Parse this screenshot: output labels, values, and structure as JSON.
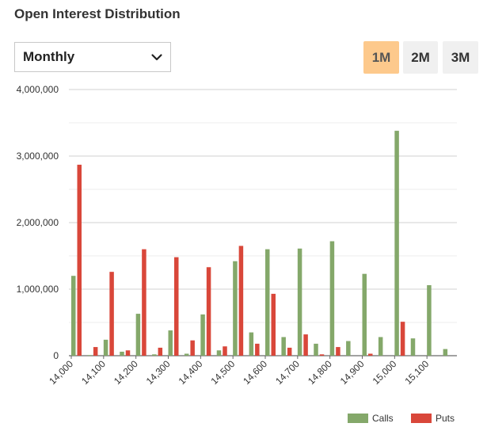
{
  "title": "Open Interest Distribution",
  "period_select": {
    "value": "Monthly",
    "icon": "chevron-down-icon"
  },
  "range_buttons": [
    {
      "label": "1M",
      "active": true
    },
    {
      "label": "2M",
      "active": false
    },
    {
      "label": "3M",
      "active": false
    }
  ],
  "colors": {
    "calls": "#84a86a",
    "puts": "#d9473a",
    "active_button": "#fdc98c",
    "button": "#f0f0f0"
  },
  "chart_data": {
    "type": "bar",
    "title": "",
    "xlabel": "",
    "ylabel": "",
    "ylim": [
      0,
      4000000
    ],
    "yticks": [
      0,
      1000000,
      2000000,
      3000000,
      4000000
    ],
    "ytick_labels": [
      "0",
      "1,000,000",
      "2,000,000",
      "3,000,000",
      "4,000,000"
    ],
    "grid": true,
    "legend_position": "bottom-right",
    "categories": [
      14000,
      14050,
      14100,
      14150,
      14200,
      14250,
      14300,
      14350,
      14400,
      14450,
      14500,
      14550,
      14600,
      14650,
      14700,
      14750,
      14800,
      14850,
      14900,
      14950,
      15000,
      15050,
      15100,
      15150
    ],
    "xtick_labels": [
      "14,000",
      "14,100",
      "14,200",
      "14,300",
      "14,400",
      "14,500",
      "14,600",
      "14,700",
      "14,800",
      "14,900",
      "15,000",
      "15,100"
    ],
    "series": [
      {
        "name": "Calls",
        "values": [
          1200000,
          10000,
          240000,
          60000,
          630000,
          20000,
          380000,
          30000,
          620000,
          80000,
          1420000,
          350000,
          1600000,
          280000,
          1610000,
          180000,
          1720000,
          220000,
          1230000,
          280000,
          3380000,
          260000,
          1060000,
          100000
        ]
      },
      {
        "name": "Puts",
        "values": [
          2870000,
          130000,
          1260000,
          80000,
          1600000,
          120000,
          1480000,
          230000,
          1330000,
          140000,
          1650000,
          180000,
          930000,
          120000,
          320000,
          20000,
          130000,
          0,
          30000,
          0,
          510000,
          0,
          0,
          0
        ]
      }
    ]
  }
}
